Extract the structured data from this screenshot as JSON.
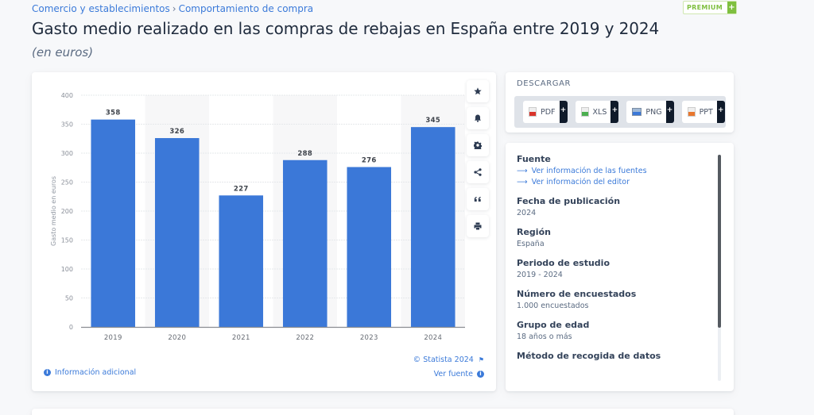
{
  "breadcrumb": {
    "items": [
      "Comercio y establecimientos",
      "Comportamiento de compra"
    ],
    "separator": "›"
  },
  "header": {
    "title": "Gasto medio realizado en las compras de rebajas en España entre 2019 y 2024",
    "subtitle": "(en euros)",
    "premium_label": "PREMIUM",
    "premium_plus": "+"
  },
  "chart_data": {
    "type": "bar",
    "title": "Gasto medio realizado en las compras de rebajas en España entre 2019 y 2024",
    "subtitle": "(en euros)",
    "categories": [
      "2019",
      "2020",
      "2021",
      "2022",
      "2023",
      "2024"
    ],
    "values": [
      358,
      326,
      227,
      288,
      276,
      345
    ],
    "xlabel": "",
    "ylabel": "Gasto medio en euros",
    "ylim": [
      0,
      400
    ],
    "yticks": [
      0,
      50,
      100,
      150,
      200,
      250,
      300,
      350,
      400
    ],
    "grid": true,
    "legend": "none",
    "data_labels": true,
    "bar_color": "#3b78d8",
    "band_shade_color": "#f7f7f8"
  },
  "chart_tools": [
    {
      "name": "favorite",
      "icon": "star-icon"
    },
    {
      "name": "notification",
      "icon": "bell-icon"
    },
    {
      "name": "settings",
      "icon": "gear-icon"
    },
    {
      "name": "share",
      "icon": "share-icon"
    },
    {
      "name": "cite",
      "icon": "quote-icon"
    },
    {
      "name": "print",
      "icon": "print-icon"
    }
  ],
  "chart_footer": {
    "info_label": "Información adicional",
    "copyright": "© Statista 2024",
    "source_link": "Ver fuente"
  },
  "download": {
    "title": "DESCARGAR",
    "buttons": [
      {
        "label": "PDF",
        "color": "#d9342b"
      },
      {
        "label": "XLS",
        "color": "#4caf50"
      },
      {
        "label": "PNG",
        "color": "#3b78d8"
      },
      {
        "label": "PPT",
        "color": "#e8772e"
      }
    ],
    "plus": "+"
  },
  "info": {
    "source_heading": "Fuente",
    "source_links": [
      "Ver información de las fuentes",
      "Ver información del editor"
    ],
    "fields": [
      {
        "label": "Fecha de publicación",
        "value": "2024"
      },
      {
        "label": "Región",
        "value": "España"
      },
      {
        "label": "Periodo de estudio",
        "value": "2019 - 2024"
      },
      {
        "label": "Número de encuestados",
        "value": "1.000 encuestados"
      },
      {
        "label": "Grupo de edad",
        "value": "18 años o más"
      },
      {
        "label": "Método de recogida de datos",
        "value": ""
      }
    ]
  }
}
